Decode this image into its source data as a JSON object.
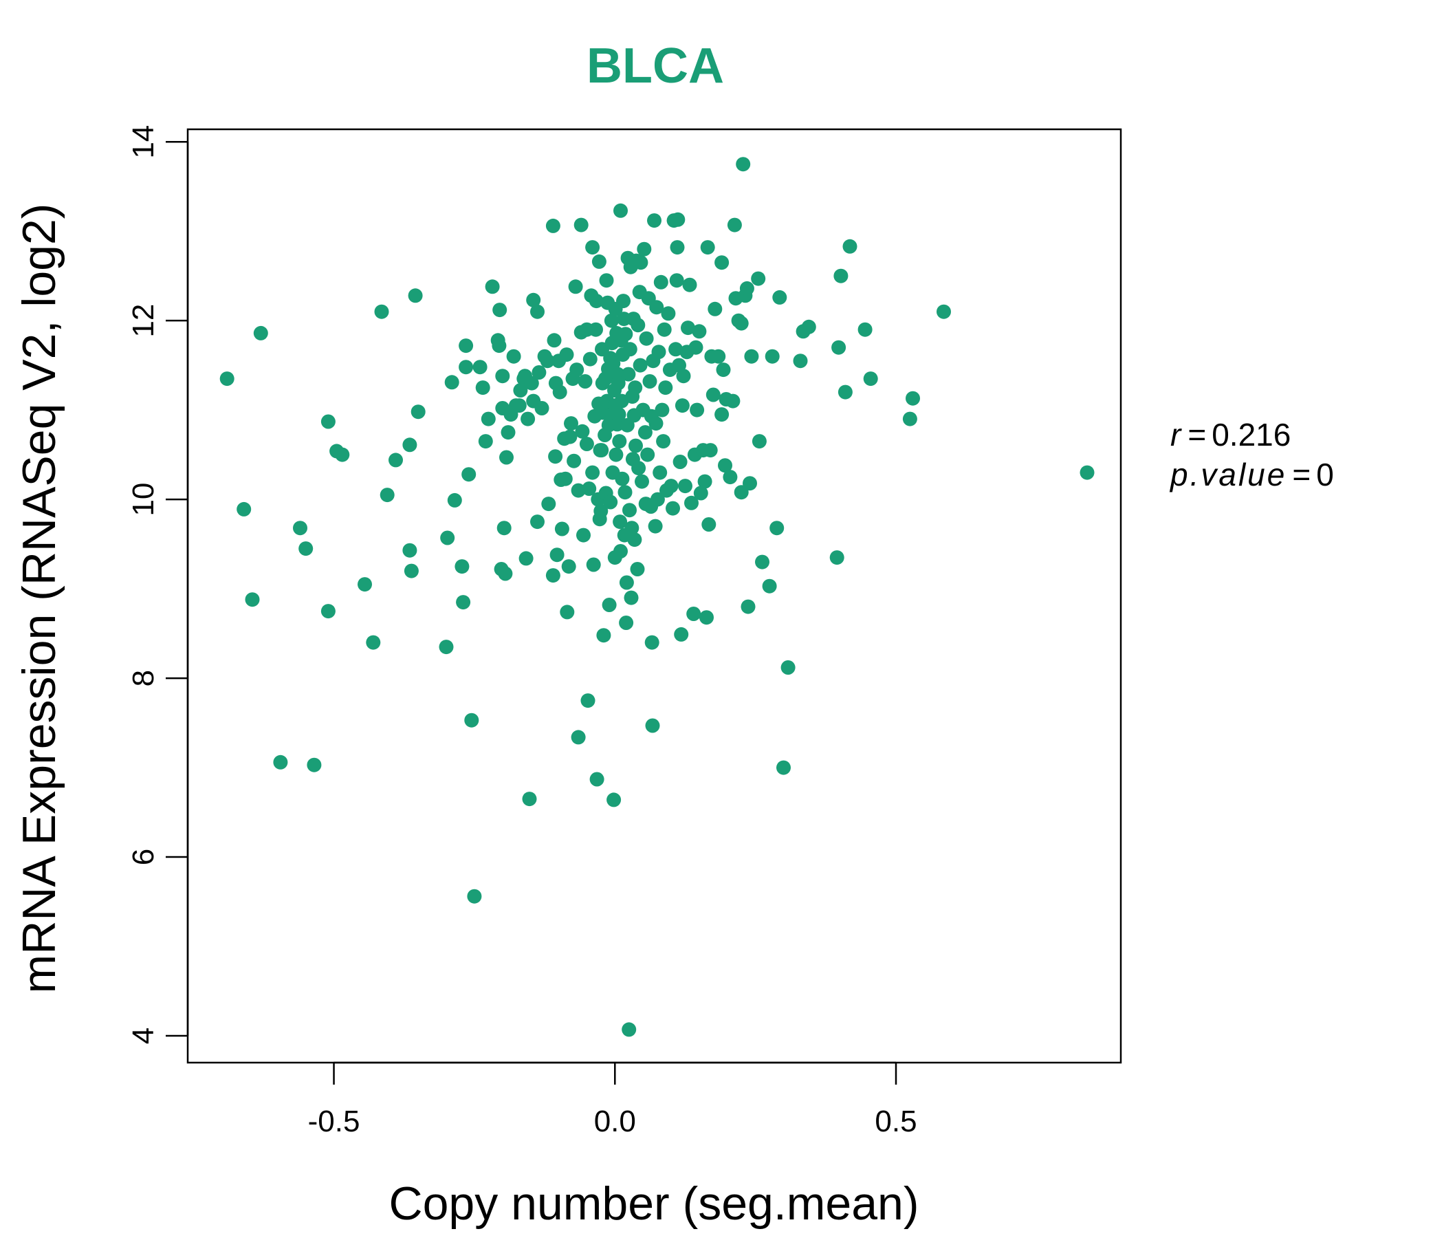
{
  "colors": {
    "point": "#1a9e76",
    "title": "#1a9e76",
    "axis": "#000000"
  },
  "stats": {
    "r_label": "r",
    "r_value": "0.216",
    "p_label": "p.value",
    "p_value": "0"
  },
  "chart_data": {
    "type": "scatter",
    "title": "BLCA",
    "xlabel": "Copy number (seg.mean)",
    "ylabel": "mRNA Expression (RNASeq V2, log2)",
    "xlim": [
      -0.76,
      0.9
    ],
    "ylim": [
      3.7,
      14.14
    ],
    "xticks": [
      -0.5,
      0.0,
      0.5
    ],
    "xtick_labels": [
      "-0.5",
      "0.0",
      "0.5"
    ],
    "yticks": [
      4,
      6,
      8,
      10,
      12,
      14
    ],
    "ytick_labels": [
      "4",
      "6",
      "8",
      "10",
      "12",
      "14"
    ],
    "grid": false,
    "points": [
      [
        -0.69,
        11.35
      ],
      [
        -0.63,
        11.86
      ],
      [
        -0.66,
        9.89
      ],
      [
        -0.645,
        8.88
      ],
      [
        -0.595,
        7.06
      ],
      [
        -0.535,
        7.03
      ],
      [
        -0.56,
        9.68
      ],
      [
        -0.55,
        9.45
      ],
      [
        -0.51,
        10.87
      ],
      [
        -0.51,
        8.75
      ],
      [
        -0.495,
        10.54
      ],
      [
        -0.485,
        10.5
      ],
      [
        -0.445,
        9.05
      ],
      [
        -0.43,
        8.4
      ],
      [
        -0.415,
        12.1
      ],
      [
        -0.405,
        10.05
      ],
      [
        -0.39,
        10.44
      ],
      [
        -0.365,
        10.61
      ],
      [
        -0.365,
        9.43
      ],
      [
        -0.362,
        9.2
      ],
      [
        -0.355,
        12.28
      ],
      [
        -0.35,
        10.98
      ],
      [
        -0.3,
        8.35
      ],
      [
        -0.298,
        9.57
      ],
      [
        -0.29,
        11.31
      ],
      [
        -0.285,
        9.99
      ],
      [
        -0.272,
        9.25
      ],
      [
        -0.27,
        8.85
      ],
      [
        -0.265,
        11.72
      ],
      [
        -0.265,
        11.48
      ],
      [
        -0.26,
        10.28
      ],
      [
        -0.255,
        7.53
      ],
      [
        -0.25,
        5.56
      ],
      [
        -0.24,
        11.48
      ],
      [
        -0.235,
        11.25
      ],
      [
        -0.23,
        10.65
      ],
      [
        -0.225,
        10.9
      ],
      [
        -0.218,
        12.38
      ],
      [
        -0.208,
        11.78
      ],
      [
        -0.206,
        11.72
      ],
      [
        -0.205,
        12.12
      ],
      [
        -0.202,
        9.22
      ],
      [
        -0.2,
        11.38
      ],
      [
        -0.2,
        11.02
      ],
      [
        -0.197,
        9.68
      ],
      [
        -0.195,
        9.17
      ],
      [
        -0.193,
        10.47
      ],
      [
        -0.19,
        10.75
      ],
      [
        -0.185,
        10.95
      ],
      [
        -0.18,
        11.6
      ],
      [
        -0.176,
        11.05
      ],
      [
        -0.17,
        11.05
      ],
      [
        -0.168,
        11.22
      ],
      [
        -0.162,
        11.35
      ],
      [
        -0.16,
        11.38
      ],
      [
        -0.158,
        9.34
      ],
      [
        -0.155,
        10.9
      ],
      [
        -0.152,
        6.65
      ],
      [
        -0.148,
        11.3
      ],
      [
        -0.145,
        12.23
      ],
      [
        -0.145,
        11.1
      ],
      [
        -0.138,
        12.1
      ],
      [
        -0.138,
        9.75
      ],
      [
        -0.135,
        11.42
      ],
      [
        -0.13,
        11.02
      ],
      [
        -0.125,
        11.6
      ],
      [
        -0.12,
        11.55
      ],
      [
        -0.118,
        9.95
      ],
      [
        -0.11,
        9.15
      ],
      [
        -0.11,
        13.06
      ],
      [
        -0.108,
        11.78
      ],
      [
        -0.106,
        10.48
      ],
      [
        -0.105,
        11.3
      ],
      [
        -0.103,
        9.38
      ],
      [
        -0.1,
        11.55
      ],
      [
        -0.098,
        11.2
      ],
      [
        -0.096,
        10.22
      ],
      [
        -0.094,
        9.67
      ],
      [
        -0.09,
        10.68
      ],
      [
        -0.088,
        10.23
      ],
      [
        -0.086,
        11.62
      ],
      [
        -0.085,
        8.74
      ],
      [
        -0.082,
        9.25
      ],
      [
        -0.08,
        10.7
      ],
      [
        -0.078,
        10.85
      ],
      [
        -0.075,
        11.35
      ],
      [
        -0.073,
        10.43
      ],
      [
        -0.07,
        12.38
      ],
      [
        -0.068,
        11.45
      ],
      [
        -0.065,
        10.1
      ],
      [
        -0.065,
        7.34
      ],
      [
        -0.06,
        11.87
      ],
      [
        -0.06,
        13.07
      ],
      [
        -0.058,
        10.76
      ],
      [
        -0.056,
        9.6
      ],
      [
        -0.053,
        11.32
      ],
      [
        -0.05,
        10.62
      ],
      [
        -0.05,
        11.9
      ],
      [
        -0.048,
        7.75
      ],
      [
        -0.046,
        10.12
      ],
      [
        -0.044,
        11.57
      ],
      [
        -0.042,
        12.28
      ],
      [
        -0.04,
        12.82
      ],
      [
        -0.04,
        10.3
      ],
      [
        -0.038,
        9.27
      ],
      [
        -0.036,
        10.93
      ],
      [
        -0.034,
        11.9
      ],
      [
        -0.033,
        12.22
      ],
      [
        -0.032,
        6.87
      ],
      [
        -0.03,
        10.0
      ],
      [
        -0.029,
        11.07
      ],
      [
        -0.028,
        12.66
      ],
      [
        -0.027,
        9.78
      ],
      [
        -0.026,
        10.55
      ],
      [
        -0.025,
        9.87
      ],
      [
        -0.024,
        10.55
      ],
      [
        -0.023,
        11.68
      ],
      [
        -0.022,
        11.3
      ],
      [
        -0.021,
        10.97
      ],
      [
        -0.02,
        8.48
      ],
      [
        -0.018,
        10.72
      ],
      [
        -0.017,
        11.35
      ],
      [
        -0.016,
        10.07
      ],
      [
        -0.015,
        12.45
      ],
      [
        -0.014,
        11.1
      ],
      [
        -0.013,
        12.2
      ],
      [
        -0.012,
        11.46
      ],
      [
        -0.011,
        10.83
      ],
      [
        -0.01,
        8.82
      ],
      [
        -0.008,
        11.58
      ],
      [
        -0.008,
        9.97
      ],
      [
        -0.007,
        10.95
      ],
      [
        -0.006,
        12.0
      ],
      [
        -0.005,
        11.75
      ],
      [
        -0.004,
        10.3
      ],
      [
        -0.003,
        11.52
      ],
      [
        -0.002,
        6.64
      ],
      [
        -0.001,
        11.22
      ],
      [
        0.0,
        11.05
      ],
      [
        0.0,
        9.35
      ],
      [
        0.001,
        12.13
      ],
      [
        0.002,
        10.5
      ],
      [
        0.003,
        11.86
      ],
      [
        0.004,
        10.84
      ],
      [
        0.005,
        11.4
      ],
      [
        0.006,
        11.3
      ],
      [
        0.007,
        10.95
      ],
      [
        0.008,
        10.65
      ],
      [
        0.009,
        9.75
      ],
      [
        0.01,
        13.23
      ],
      [
        0.01,
        9.42
      ],
      [
        0.011,
        11.78
      ],
      [
        0.012,
        11.1
      ],
      [
        0.013,
        10.23
      ],
      [
        0.014,
        11.62
      ],
      [
        0.015,
        12.22
      ],
      [
        0.016,
        12.02
      ],
      [
        0.017,
        9.6
      ],
      [
        0.018,
        10.08
      ],
      [
        0.019,
        11.85
      ],
      [
        0.02,
        8.62
      ],
      [
        0.021,
        9.07
      ],
      [
        0.022,
        10.83
      ],
      [
        0.023,
        12.7
      ],
      [
        0.024,
        11.4
      ],
      [
        0.025,
        4.07
      ],
      [
        0.026,
        9.88
      ],
      [
        0.027,
        11.68
      ],
      [
        0.028,
        12.6
      ],
      [
        0.029,
        8.9
      ],
      [
        0.03,
        9.68
      ],
      [
        0.031,
        11.15
      ],
      [
        0.032,
        10.45
      ],
      [
        0.033,
        12.02
      ],
      [
        0.034,
        10.94
      ],
      [
        0.035,
        9.55
      ],
      [
        0.036,
        11.25
      ],
      [
        0.037,
        10.6
      ],
      [
        0.038,
        12.67
      ],
      [
        0.04,
        9.22
      ],
      [
        0.041,
        11.95
      ],
      [
        0.042,
        10.35
      ],
      [
        0.044,
        12.32
      ],
      [
        0.045,
        11.5
      ],
      [
        0.046,
        12.65
      ],
      [
        0.048,
        10.2
      ],
      [
        0.05,
        11.0
      ],
      [
        0.052,
        12.8
      ],
      [
        0.054,
        10.75
      ],
      [
        0.055,
        9.95
      ],
      [
        0.056,
        11.8
      ],
      [
        0.058,
        10.5
      ],
      [
        0.06,
        12.25
      ],
      [
        0.062,
        11.32
      ],
      [
        0.064,
        9.92
      ],
      [
        0.065,
        10.93
      ],
      [
        0.066,
        8.4
      ],
      [
        0.067,
        7.47
      ],
      [
        0.068,
        11.55
      ],
      [
        0.07,
        13.12
      ],
      [
        0.072,
        9.7
      ],
      [
        0.073,
        10.85
      ],
      [
        0.074,
        12.15
      ],
      [
        0.076,
        10.0
      ],
      [
        0.078,
        11.65
      ],
      [
        0.08,
        10.3
      ],
      [
        0.082,
        12.43
      ],
      [
        0.084,
        11.0
      ],
      [
        0.086,
        10.65
      ],
      [
        0.088,
        11.9
      ],
      [
        0.09,
        11.25
      ],
      [
        0.092,
        10.1
      ],
      [
        0.095,
        12.08
      ],
      [
        0.098,
        11.45
      ],
      [
        0.1,
        10.15
      ],
      [
        0.103,
        9.9
      ],
      [
        0.105,
        13.12
      ],
      [
        0.108,
        11.68
      ],
      [
        0.11,
        12.45
      ],
      [
        0.111,
        12.82
      ],
      [
        0.112,
        13.13
      ],
      [
        0.114,
        11.5
      ],
      [
        0.116,
        10.42
      ],
      [
        0.118,
        8.49
      ],
      [
        0.12,
        11.05
      ],
      [
        0.122,
        11.38
      ],
      [
        0.125,
        10.15
      ],
      [
        0.128,
        11.65
      ],
      [
        0.13,
        11.92
      ],
      [
        0.133,
        12.4
      ],
      [
        0.136,
        9.96
      ],
      [
        0.14,
        8.72
      ],
      [
        0.142,
        10.5
      ],
      [
        0.144,
        11.7
      ],
      [
        0.146,
        11.0
      ],
      [
        0.15,
        11.88
      ],
      [
        0.153,
        10.07
      ],
      [
        0.157,
        10.55
      ],
      [
        0.16,
        10.2
      ],
      [
        0.163,
        8.68
      ],
      [
        0.165,
        12.82
      ],
      [
        0.167,
        9.72
      ],
      [
        0.17,
        10.55
      ],
      [
        0.172,
        11.6
      ],
      [
        0.175,
        11.17
      ],
      [
        0.178,
        12.13
      ],
      [
        0.184,
        11.6
      ],
      [
        0.19,
        12.65
      ],
      [
        0.19,
        10.95
      ],
      [
        0.193,
        11.45
      ],
      [
        0.196,
        10.38
      ],
      [
        0.198,
        11.12
      ],
      [
        0.205,
        10.25
      ],
      [
        0.21,
        11.1
      ],
      [
        0.213,
        13.07
      ],
      [
        0.215,
        12.25
      ],
      [
        0.22,
        12.0
      ],
      [
        0.225,
        10.08
      ],
      [
        0.225,
        11.97
      ],
      [
        0.228,
        13.75
      ],
      [
        0.232,
        12.28
      ],
      [
        0.235,
        12.36
      ],
      [
        0.237,
        8.8
      ],
      [
        0.24,
        10.18
      ],
      [
        0.243,
        11.6
      ],
      [
        0.255,
        12.47
      ],
      [
        0.257,
        10.65
      ],
      [
        0.262,
        9.3
      ],
      [
        0.275,
        9.03
      ],
      [
        0.28,
        11.6
      ],
      [
        0.288,
        9.68
      ],
      [
        0.293,
        12.26
      ],
      [
        0.3,
        7.0
      ],
      [
        0.308,
        8.12
      ],
      [
        0.33,
        11.55
      ],
      [
        0.335,
        11.88
      ],
      [
        0.345,
        11.93
      ],
      [
        0.395,
        9.35
      ],
      [
        0.398,
        11.7
      ],
      [
        0.402,
        12.5
      ],
      [
        0.41,
        11.2
      ],
      [
        0.418,
        12.83
      ],
      [
        0.445,
        11.9
      ],
      [
        0.455,
        11.35
      ],
      [
        0.525,
        10.9
      ],
      [
        0.53,
        11.13
      ],
      [
        0.585,
        12.1
      ],
      [
        0.84,
        10.3
      ]
    ]
  }
}
